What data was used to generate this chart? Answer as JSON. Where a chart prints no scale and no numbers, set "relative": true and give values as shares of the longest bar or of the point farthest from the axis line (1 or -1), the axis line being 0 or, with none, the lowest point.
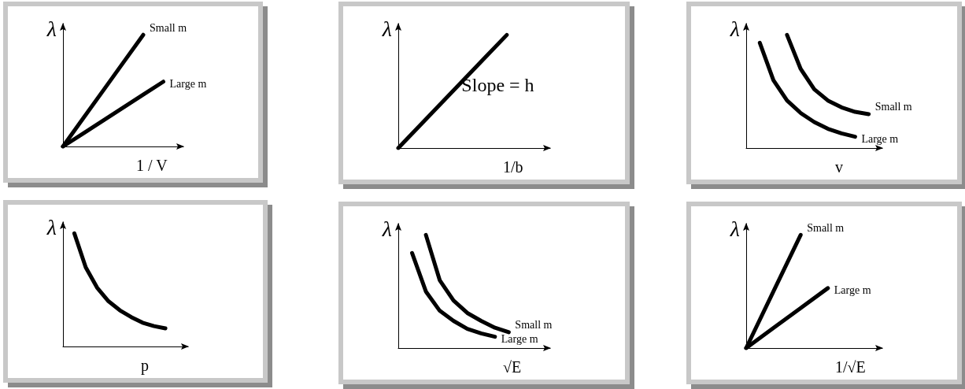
{
  "chart_data": [
    {
      "type": "line",
      "relative": true,
      "ylabel": "λ",
      "xlabel": "1 / V",
      "categories": [
        null,
        null,
        null,
        null,
        null,
        null,
        null
      ],
      "marker": "none",
      "line_style": "solid",
      "legend": false,
      "grid": false,
      "series": [
        {
          "name": "Small m",
          "color": "#000000",
          "values": [
            0,
            0.25,
            0.5,
            0.75,
            1,
            null,
            null
          ]
        },
        {
          "name": "Large m",
          "color": "#000000",
          "values": [
            0,
            0.116,
            0.232,
            0.348,
            0.464,
            0.58,
            null
          ]
        }
      ]
    },
    {
      "type": "line",
      "relative": true,
      "ylabel": "λ",
      "xlabel": "1/b",
      "categories": [
        null,
        null,
        null,
        null,
        null,
        null,
        null,
        null
      ],
      "marker": "none",
      "line_style": "solid",
      "legend": false,
      "grid": false,
      "annotations": [
        "Slope = h"
      ],
      "series": [
        {
          "color": "#000000",
          "values": [
            0,
            0.2,
            0.4,
            0.6,
            0.8,
            1,
            null,
            null
          ]
        }
      ]
    },
    {
      "type": "line",
      "relative": true,
      "ylabel": "λ",
      "xlabel": "v",
      "categories": [
        null,
        null,
        null,
        null,
        null,
        null,
        null,
        null,
        null,
        null,
        null
      ],
      "marker": "none",
      "line_style": "solid",
      "legend": false,
      "grid": false,
      "series": [
        {
          "name": "Small m",
          "color": "#000000",
          "values": [
            null,
            null,
            null,
            1,
            0.7,
            0.52,
            0.42,
            0.36,
            0.32,
            0.3,
            null
          ]
        },
        {
          "name": "Large m",
          "color": "#000000",
          "values": [
            null,
            0.93,
            0.6,
            0.42,
            0.31,
            0.23,
            0.17,
            0.13,
            0.1,
            null,
            null
          ]
        }
      ]
    },
    {
      "type": "line",
      "relative": true,
      "ylabel": "λ",
      "xlabel": "p",
      "categories": [
        null,
        null,
        null,
        null,
        null,
        null,
        null,
        null,
        null,
        null,
        null,
        null
      ],
      "marker": "none",
      "line_style": "solid",
      "legend": false,
      "grid": false,
      "series": [
        {
          "color": "#000000",
          "values": [
            null,
            1,
            0.7,
            0.52,
            0.4,
            0.32,
            0.26,
            0.21,
            0.18,
            0.16,
            null,
            null
          ]
        }
      ]
    },
    {
      "type": "line",
      "relative": true,
      "ylabel": "λ",
      "xlabel": "√E",
      "categories": [
        null,
        null,
        null,
        null,
        null,
        null,
        null,
        null,
        null,
        null,
        null,
        null
      ],
      "marker": "none",
      "line_style": "solid",
      "legend": false,
      "grid": false,
      "series": [
        {
          "name": "Small m",
          "color": "#000000",
          "values": [
            null,
            null,
            1,
            0.6,
            0.42,
            0.31,
            0.24,
            0.18,
            0.14,
            null,
            null,
            null
          ]
        },
        {
          "name": "Large m",
          "color": "#000000",
          "values": [
            null,
            0.84,
            0.5,
            0.33,
            0.24,
            0.17,
            0.13,
            0.1,
            null,
            null,
            null,
            null
          ]
        }
      ]
    },
    {
      "type": "line",
      "relative": true,
      "ylabel": "λ",
      "xlabel": "1/√E",
      "categories": [
        null,
        null,
        null,
        null,
        null,
        null
      ],
      "marker": "none",
      "line_style": "solid",
      "legend": false,
      "grid": false,
      "series": [
        {
          "name": "Small m",
          "color": "#000000",
          "values": [
            0,
            0.5,
            1,
            null,
            null,
            null
          ]
        },
        {
          "name": "Large m",
          "color": "#000000",
          "values": [
            0,
            0.177,
            0.353,
            0.53,
            null,
            null
          ]
        }
      ]
    }
  ]
}
